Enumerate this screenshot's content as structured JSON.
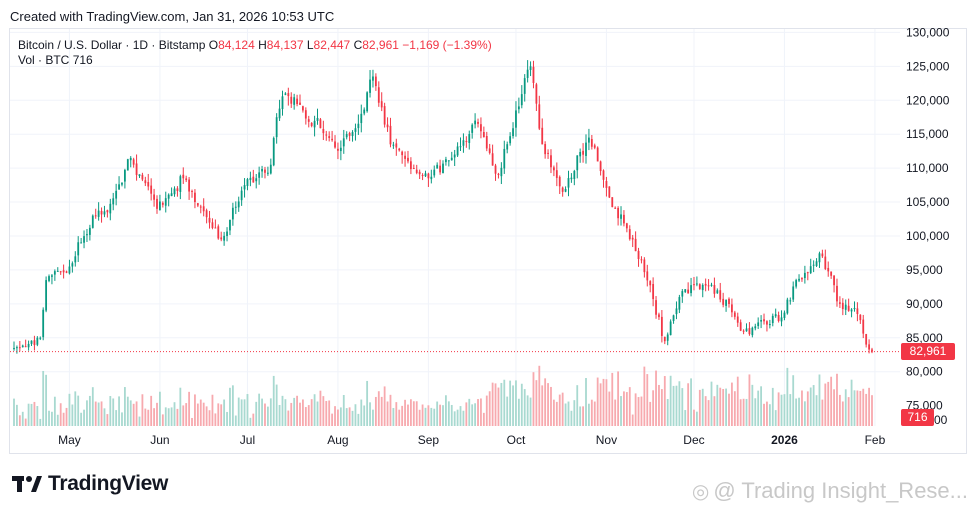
{
  "header": {
    "caption": "Created with TradingView.com, Jan 31, 2026 10:53 UTC"
  },
  "legend": {
    "symbol": "Bitcoin / U.S. Dollar · 1D · Bitstamp",
    "open_label": "O",
    "open": "84,124",
    "high_label": "H",
    "high": "84,137",
    "low_label": "L",
    "low": "82,447",
    "close_label": "C",
    "close": "82,961",
    "change": "−1,169 (−1.39%)",
    "vol_label": "Vol · BTC",
    "vol": "716"
  },
  "badges": {
    "last_price": "82,961",
    "last_volume": "716"
  },
  "footer": {
    "logo_text": "TradingView",
    "watermark": "@ Trading Insight_Rese..."
  },
  "colors": {
    "up": "#089981",
    "down": "#f23645",
    "up_vol": "#a8d9d0",
    "down_vol": "#f7a9ae"
  },
  "icons": {
    "logo": "tradingview-logo-icon",
    "watermark": "weibo-icon"
  },
  "chart_data": {
    "type": "candlestick",
    "symbol": "BTCUSD",
    "interval": "1D",
    "x_start": "2025-04-12",
    "x_end": "2026-01-31",
    "x_tick_labels": [
      "May",
      "Jun",
      "Jul",
      "Aug",
      "Sep",
      "Oct",
      "Nov",
      "Dec",
      "2026",
      "Feb"
    ],
    "x_tick_dates": [
      "2025-05-01",
      "2025-06-01",
      "2025-07-01",
      "2025-08-01",
      "2025-09-01",
      "2025-10-01",
      "2025-11-01",
      "2025-12-01",
      "2026-01-01",
      "2026-02-01"
    ],
    "y_tick_labels": [
      "80,000",
      "85,000",
      "90,000",
      "95,000",
      "100,000",
      "105,000",
      "110,000",
      "115,000",
      "120,000",
      "125,000",
      "130,000"
    ],
    "y_ticks": [
      80000,
      85000,
      90000,
      95000,
      100000,
      105000,
      110000,
      115000,
      120000,
      125000,
      130000
    ],
    "lower_y_tick_labels": [
      "75,000"
    ],
    "lower_y_ticks": [
      75000
    ],
    "ylim": [
      72000,
      130500
    ],
    "grid": true,
    "last_close": 82961,
    "close_anchors": [
      [
        "2025-04-12",
        83500
      ],
      [
        "2025-04-21",
        85000
      ],
      [
        "2025-04-23",
        93500
      ],
      [
        "2025-05-01",
        95500
      ],
      [
        "2025-05-09",
        103000
      ],
      [
        "2025-05-14",
        103500
      ],
      [
        "2025-05-22",
        111500
      ],
      [
        "2025-05-31",
        104000
      ],
      [
        "2025-06-09",
        108500
      ],
      [
        "2025-06-13",
        105000
      ],
      [
        "2025-06-22",
        99500
      ],
      [
        "2025-06-30",
        107500
      ],
      [
        "2025-07-09",
        110500
      ],
      [
        "2025-07-11",
        117500
      ],
      [
        "2025-07-14",
        121000
      ],
      [
        "2025-07-20",
        118500
      ],
      [
        "2025-08-02",
        113000
      ],
      [
        "2025-08-09",
        118000
      ],
      [
        "2025-08-13",
        123500
      ],
      [
        "2025-08-19",
        113500
      ],
      [
        "2025-08-25",
        111000
      ],
      [
        "2025-09-01",
        108500
      ],
      [
        "2025-09-10",
        112000
      ],
      [
        "2025-09-17",
        117000
      ],
      [
        "2025-09-25",
        109000
      ],
      [
        "2025-10-01",
        118500
      ],
      [
        "2025-10-06",
        125000
      ],
      [
        "2025-10-10",
        113500
      ],
      [
        "2025-10-17",
        106500
      ],
      [
        "2025-10-26",
        114500
      ],
      [
        "2025-11-04",
        104000
      ],
      [
        "2025-11-13",
        96500
      ],
      [
        "2025-11-21",
        84500
      ],
      [
        "2025-11-26",
        91000
      ],
      [
        "2025-12-02",
        93000
      ],
      [
        "2025-12-09",
        92000
      ],
      [
        "2025-12-18",
        86000
      ],
      [
        "2025-12-31",
        88000
      ],
      [
        "2026-01-05",
        93500
      ],
      [
        "2026-01-14",
        97000
      ],
      [
        "2026-01-20",
        90000
      ],
      [
        "2026-01-26",
        88500
      ],
      [
        "2026-01-29",
        84000
      ],
      [
        "2026-01-31",
        82961
      ]
    ]
  }
}
